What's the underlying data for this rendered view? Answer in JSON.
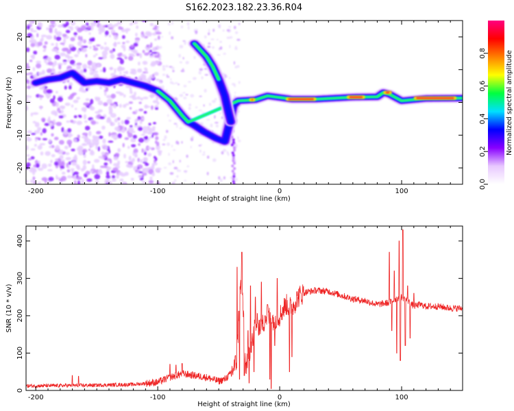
{
  "title": "S162.2023.182.23.36.R04",
  "chart_data": [
    {
      "type": "heatmap",
      "xlabel": "Height of straight line (km)",
      "ylabel": "Frequency (Hz)",
      "xlim": [
        -208,
        150
      ],
      "ylim": [
        -25,
        25
      ],
      "x_ticks": [
        -200,
        -100,
        0,
        100
      ],
      "y_ticks": [
        -20,
        -10,
        0,
        10,
        20
      ],
      "colorbar": {
        "label": "Normalized spectral amplitude",
        "range": [
          0,
          1
        ],
        "ticks": [
          "0.0",
          "0.2",
          "0.4",
          "0.6",
          "0.8"
        ],
        "colors": [
          "#ffffff",
          "#e8c8ff",
          "#8800ff",
          "#0000ff",
          "#00e0ff",
          "#00ff40",
          "#ffff00",
          "#ff8000",
          "#ff0000",
          "#ff0080"
        ]
      },
      "ridges": [
        {
          "name": "main",
          "points": [
            [
              -200,
              6
            ],
            [
              -190,
              7
            ],
            [
              -180,
              7.5
            ],
            [
              -170,
              9
            ],
            [
              -160,
              6
            ],
            [
              -150,
              6.5
            ],
            [
              -140,
              6
            ],
            [
              -130,
              7
            ],
            [
              -120,
              6
            ],
            [
              -110,
              5
            ],
            [
              -100,
              3.5
            ],
            [
              -90,
              0.5
            ],
            [
              -80,
              -4
            ],
            [
              -75,
              -6
            ],
            [
              -70,
              -7
            ],
            [
              -62,
              -9
            ],
            [
              -52,
              -11
            ],
            [
              -45,
              -12
            ],
            [
              -41,
              -6
            ],
            [
              -38,
              -1
            ],
            [
              -34,
              0.5
            ],
            [
              -20,
              0.8
            ],
            [
              -10,
              2
            ],
            [
              0,
              1.5
            ],
            [
              10,
              1
            ],
            [
              30,
              1
            ],
            [
              60,
              1.6
            ],
            [
              80,
              1.7
            ],
            [
              85,
              3
            ],
            [
              90,
              2.5
            ],
            [
              100,
              0.5
            ],
            [
              120,
              1.2
            ],
            [
              150,
              1.3
            ]
          ]
        },
        {
          "name": "upper",
          "points": [
            [
              -70,
              18
            ],
            [
              -65,
              16
            ],
            [
              -60,
              14
            ],
            [
              -55,
              11
            ],
            [
              -50,
              7
            ],
            [
              -45,
              2
            ],
            [
              -42,
              -3
            ],
            [
              -40,
              -6
            ]
          ]
        }
      ]
    },
    {
      "type": "line",
      "xlabel": "Height of straight line (km)",
      "ylabel": "SNR (10 * v/v)",
      "xlim": [
        -208,
        150
      ],
      "ylim": [
        0,
        440
      ],
      "x_ticks": [
        -200,
        -100,
        0,
        100
      ],
      "y_ticks": [
        0,
        100,
        200,
        300,
        400
      ],
      "color": "#ee2222",
      "envelope": {
        "x": [
          -208,
          -150,
          -120,
          -100,
          -90,
          -80,
          -70,
          -60,
          -50,
          -45,
          -40,
          -35,
          -33,
          -31,
          -28,
          -25,
          -20,
          -15,
          -10,
          -5,
          0,
          5,
          10,
          15,
          20,
          30,
          40,
          50,
          60,
          70,
          80,
          90,
          95,
          100,
          105,
          110,
          115,
          120,
          130,
          140,
          150
        ],
        "values": [
          12,
          14,
          16,
          22,
          35,
          45,
          40,
          35,
          25,
          30,
          45,
          80,
          250,
          300,
          60,
          100,
          180,
          170,
          200,
          190,
          200,
          230,
          220,
          250,
          262,
          268,
          265,
          255,
          245,
          240,
          230,
          235,
          245,
          250,
          240,
          225,
          230,
          225,
          225,
          220,
          220
        ]
      },
      "spikes": [
        [
          -35,
          330
        ],
        [
          -33,
          360
        ],
        [
          -31,
          370
        ],
        [
          -29,
          310
        ],
        [
          -26,
          160
        ],
        [
          -24,
          280
        ],
        [
          -22,
          120
        ],
        [
          -20,
          250
        ],
        [
          -18,
          180
        ],
        [
          -15,
          290
        ],
        [
          -12,
          200
        ],
        [
          -10,
          230
        ],
        [
          -7,
          280
        ],
        [
          -4,
          120
        ],
        [
          -2,
          300
        ],
        [
          -33,
          30
        ],
        [
          -29,
          40
        ],
        [
          -25,
          20
        ],
        [
          -21,
          50
        ],
        [
          -8,
          30
        ],
        [
          -7,
          5
        ],
        [
          10,
          90
        ],
        [
          8,
          50
        ],
        [
          90,
          370
        ],
        [
          92,
          160
        ],
        [
          94,
          320
        ],
        [
          96,
          100
        ],
        [
          98,
          400
        ],
        [
          99,
          80
        ],
        [
          101,
          430
        ],
        [
          103,
          120
        ],
        [
          105,
          280
        ],
        [
          107,
          140
        ],
        [
          110,
          260
        ],
        [
          -170,
          40
        ],
        [
          -165,
          38
        ],
        [
          -90,
          70
        ],
        [
          -85,
          68
        ],
        [
          -80,
          72
        ]
      ]
    }
  ]
}
